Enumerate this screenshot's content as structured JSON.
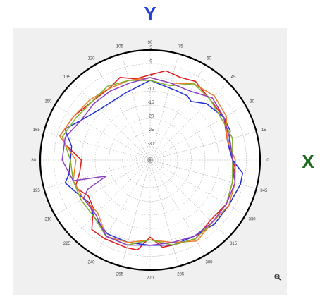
{
  "colors": {
    "y_axis_letter": "#1f3fd6",
    "x_axis_letter": "#1f6b1f",
    "panel_background": "#f0f0f0",
    "plot_background": "#ffffff",
    "grid": "#9a9a9a",
    "outer_ring": "#000000"
  },
  "icons": {
    "zoom": "zoom-magnifier-icon"
  },
  "chart_data": {
    "type": "polar-line",
    "title": "",
    "y_axis_letter": "Y",
    "x_axis_letter": "X",
    "angle_unit": "degrees",
    "angle_tick_labels": [
      "0",
      "15",
      "30",
      "45",
      "60",
      "75",
      "90",
      "105",
      "120",
      "135",
      "150",
      "165",
      "180",
      "195",
      "210",
      "225",
      "240",
      "255",
      "270",
      "285",
      "300",
      "315",
      "330",
      "345"
    ],
    "radial_tick_labels": [
      "5",
      "0",
      "-5",
      "-10",
      "-15",
      "-20",
      "-25",
      "-30"
    ],
    "rlim": [
      -35,
      5
    ],
    "grid": true,
    "series": [
      {
        "color": "#e21b1b",
        "points": [
          [
            0,
            -5
          ],
          [
            15,
            -6
          ],
          [
            30,
            -4
          ],
          [
            45,
            -4
          ],
          [
            55,
            -3
          ],
          [
            60,
            -2
          ],
          [
            70,
            -3
          ],
          [
            80,
            -2
          ],
          [
            90,
            -4
          ],
          [
            100,
            -5
          ],
          [
            110,
            -3
          ],
          [
            120,
            -5
          ],
          [
            135,
            -5
          ],
          [
            150,
            -3
          ],
          [
            165,
            -1
          ],
          [
            170,
            -4
          ],
          [
            180,
            -10
          ],
          [
            190,
            -9
          ],
          [
            200,
            -6
          ],
          [
            210,
            -9
          ],
          [
            220,
            -8
          ],
          [
            230,
            -2
          ],
          [
            240,
            -2
          ],
          [
            255,
            -2
          ],
          [
            262,
            -2
          ],
          [
            270,
            -7
          ],
          [
            278,
            -3
          ],
          [
            285,
            -3
          ],
          [
            300,
            -2
          ],
          [
            315,
            -4
          ],
          [
            330,
            -3
          ],
          [
            345,
            -4
          ],
          [
            355,
            -4
          ]
        ]
      },
      {
        "color": "#1f2fd6",
        "points": [
          [
            0,
            -5
          ],
          [
            10,
            -6
          ],
          [
            20,
            -4
          ],
          [
            30,
            -4
          ],
          [
            45,
            -6
          ],
          [
            55,
            -9
          ],
          [
            60,
            -8
          ],
          [
            70,
            -8
          ],
          [
            90,
            -6
          ],
          [
            110,
            -9
          ],
          [
            135,
            -9
          ],
          [
            150,
            -6
          ],
          [
            160,
            -2
          ],
          [
            170,
            -6
          ],
          [
            180,
            -6
          ],
          [
            190,
            -5
          ],
          [
            195,
            -3
          ],
          [
            205,
            -6
          ],
          [
            215,
            -8
          ],
          [
            225,
            -6
          ],
          [
            240,
            -4
          ],
          [
            255,
            -4
          ],
          [
            270,
            -4
          ],
          [
            285,
            -3
          ],
          [
            300,
            -3
          ],
          [
            315,
            -2
          ],
          [
            330,
            -2
          ],
          [
            345,
            -1
          ],
          [
            352,
            -1
          ]
        ]
      },
      {
        "color": "#ee7a2a",
        "points": [
          [
            0,
            -4
          ],
          [
            15,
            -6
          ],
          [
            30,
            -3
          ],
          [
            45,
            -2
          ],
          [
            60,
            -3
          ],
          [
            75,
            -6
          ],
          [
            90,
            -5
          ],
          [
            105,
            -5
          ],
          [
            120,
            -5
          ],
          [
            135,
            -4
          ],
          [
            150,
            -3
          ],
          [
            165,
            -1
          ],
          [
            180,
            -8
          ],
          [
            195,
            -6
          ],
          [
            210,
            -7
          ],
          [
            225,
            -8
          ],
          [
            240,
            -3
          ],
          [
            255,
            -4
          ],
          [
            270,
            -6
          ],
          [
            285,
            -4
          ],
          [
            300,
            -1
          ],
          [
            315,
            -3
          ],
          [
            330,
            -2
          ],
          [
            345,
            -3
          ]
        ]
      },
      {
        "color": "#7fb12e",
        "points": [
          [
            0,
            -5
          ],
          [
            15,
            -4
          ],
          [
            30,
            -5
          ],
          [
            45,
            -4
          ],
          [
            60,
            -3
          ],
          [
            75,
            -7
          ],
          [
            90,
            -6
          ],
          [
            105,
            -5
          ],
          [
            120,
            -4
          ],
          [
            135,
            -5
          ],
          [
            150,
            -4
          ],
          [
            165,
            -2
          ],
          [
            180,
            -6
          ],
          [
            195,
            -6
          ],
          [
            210,
            -6
          ],
          [
            225,
            -6
          ],
          [
            240,
            -3
          ],
          [
            255,
            -3
          ],
          [
            270,
            -6
          ],
          [
            285,
            -3
          ],
          [
            300,
            -2
          ],
          [
            315,
            -3
          ],
          [
            330,
            -3
          ],
          [
            345,
            -4
          ]
        ]
      },
      {
        "color": "#8c3fc0",
        "points": [
          [
            0,
            -5
          ],
          [
            15,
            -5
          ],
          [
            30,
            -4
          ],
          [
            45,
            -3
          ],
          [
            60,
            -6
          ],
          [
            75,
            -6
          ],
          [
            90,
            -5
          ],
          [
            105,
            -6
          ],
          [
            120,
            -6
          ],
          [
            135,
            -6
          ],
          [
            150,
            -6
          ],
          [
            165,
            -3
          ],
          [
            180,
            -3
          ],
          [
            195,
            -6
          ],
          [
            200,
            -18
          ],
          [
            205,
            -10
          ],
          [
            210,
            -7
          ],
          [
            225,
            -7
          ],
          [
            240,
            -3
          ],
          [
            255,
            -3
          ],
          [
            270,
            -4
          ],
          [
            285,
            -4
          ],
          [
            300,
            -3
          ],
          [
            315,
            -3
          ],
          [
            330,
            -3
          ],
          [
            345,
            -3
          ]
        ]
      }
    ]
  }
}
